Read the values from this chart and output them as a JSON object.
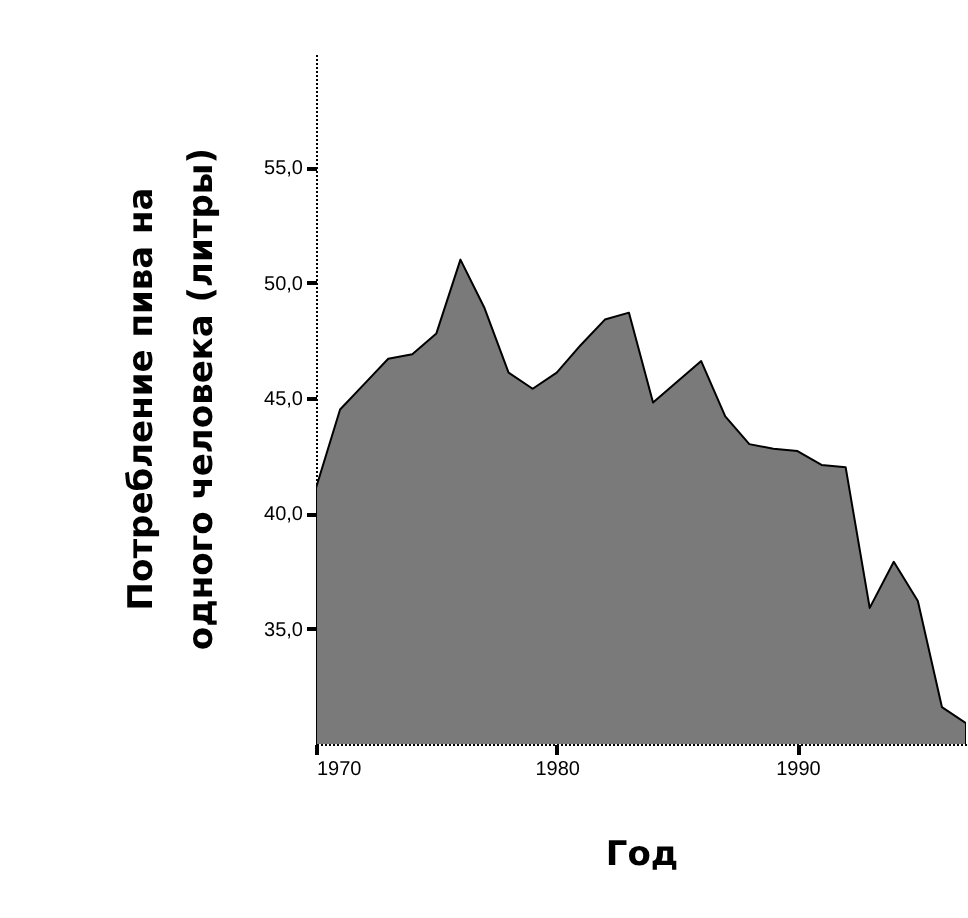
{
  "chart_data": {
    "type": "area",
    "xlabel": "Год",
    "ylabel": "Потребление пива на одного человека (литры)",
    "x": [
      1970,
      1971,
      1972,
      1973,
      1974,
      1975,
      1976,
      1977,
      1978,
      1979,
      1980,
      1981,
      1982,
      1983,
      1984,
      1985,
      1986,
      1987,
      1988,
      1989,
      1990,
      1991,
      1992,
      1993,
      1994,
      1995,
      1996,
      1997
    ],
    "series": [
      {
        "color": "#7a7a7a",
        "values": [
          41.1,
          44.5,
          45.6,
          46.7,
          46.9,
          47.8,
          51.0,
          48.9,
          46.1,
          45.4,
          46.1,
          47.3,
          48.4,
          48.7,
          44.8,
          45.7,
          46.6,
          44.2,
          43.0,
          42.8,
          42.7,
          42.1,
          42.0,
          35.9,
          37.9,
          36.2,
          31.6,
          30.9
        ]
      }
    ],
    "xlim": [
      1970,
      1997
    ],
    "xticks": [
      1970,
      1980,
      1990
    ],
    "ylim": [
      30,
      60
    ],
    "yticks": [
      {
        "value": 35,
        "label": "35,0"
      },
      {
        "value": 40,
        "label": "40,0"
      },
      {
        "value": 45,
        "label": "45,0"
      },
      {
        "value": 50,
        "label": "50,0"
      },
      {
        "value": 55,
        "label": "55,0"
      }
    ]
  }
}
